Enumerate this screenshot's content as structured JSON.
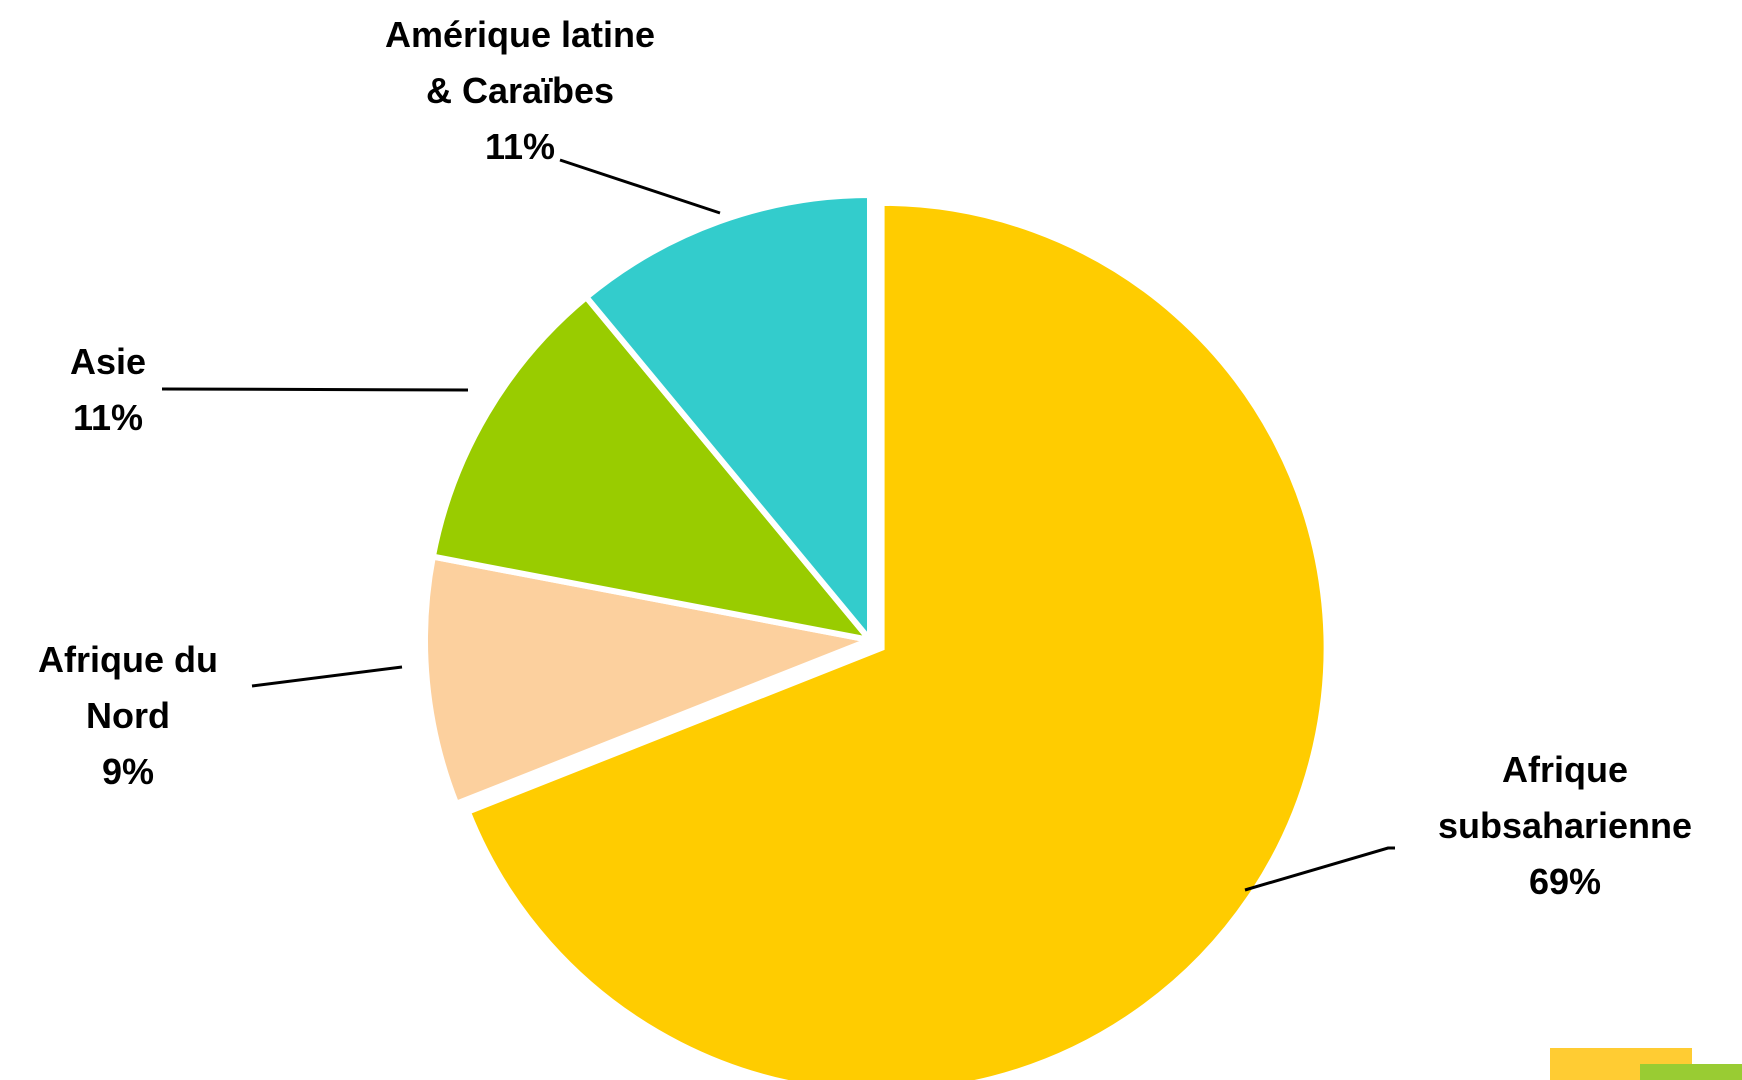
{
  "chart_data": {
    "type": "pie",
    "title": "",
    "start_angle_deg": 0,
    "direction": "clockwise",
    "slices": [
      {
        "label_lines": [
          "Afrique",
          "subsaharienne",
          "69%"
        ],
        "category": "Afrique subsaharienne",
        "value": 69,
        "percent_label": "69%",
        "color": "#FFCC00",
        "exploded": true
      },
      {
        "label_lines": [
          "Afrique du",
          "Nord",
          "9%"
        ],
        "category": "Afrique du Nord",
        "value": 9,
        "percent_label": "9%",
        "color": "#FCD09E",
        "exploded": false
      },
      {
        "label_lines": [
          "Asie",
          "11%"
        ],
        "category": "Asie",
        "value": 11,
        "percent_label": "11%",
        "color": "#99CC00",
        "exploded": false
      },
      {
        "label_lines": [
          "Amérique latine",
          "& Caraïbes",
          "11%"
        ],
        "category": "Amérique latine & Caraïbes",
        "value": 11,
        "percent_label": "11%",
        "color": "#33CCCC",
        "exploded": false
      }
    ]
  },
  "decorations": {
    "corner_block_colors": [
      "#FFCC33",
      "#99CC33"
    ]
  }
}
